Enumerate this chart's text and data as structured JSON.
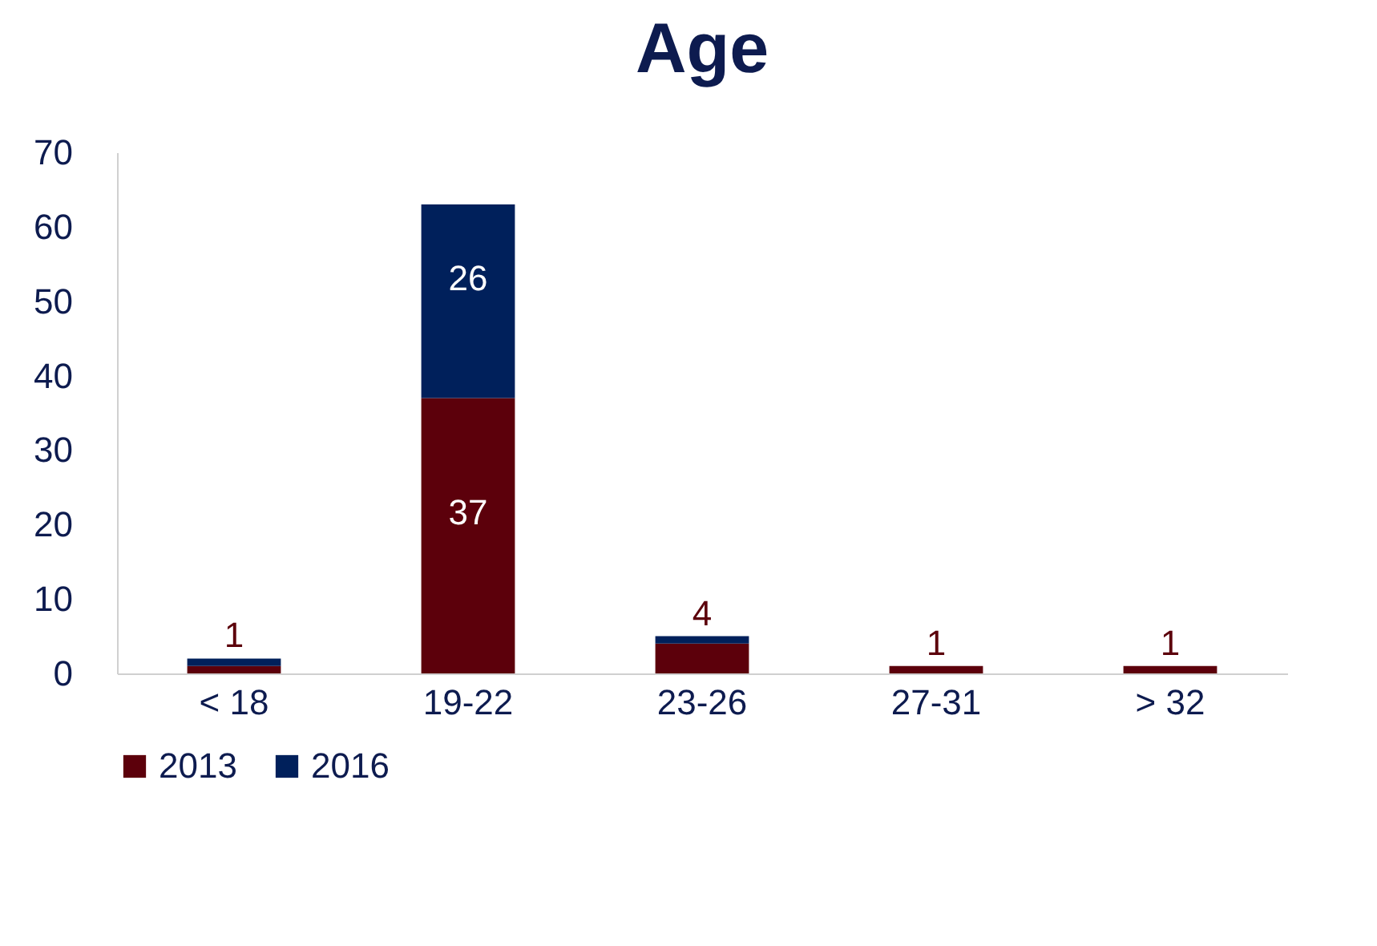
{
  "chart_data": {
    "type": "bar",
    "title": "Age",
    "stacked": true,
    "categories": [
      "< 18",
      "19-22",
      "23-26",
      "27-31",
      "> 32"
    ],
    "series": [
      {
        "name": "2013",
        "color": "#5c000b",
        "values": [
          1,
          37,
          4,
          1,
          1
        ],
        "value_labels": [
          "1",
          "37",
          "4",
          "1",
          "1"
        ]
      },
      {
        "name": "2016",
        "color": "#00205b",
        "values": [
          1,
          26,
          1,
          0,
          0
        ],
        "value_labels": [
          null,
          "26",
          null,
          null,
          null
        ]
      }
    ],
    "ylim": [
      0,
      70
    ],
    "yticks": [
      0,
      10,
      20,
      30,
      40,
      50,
      60,
      70
    ],
    "grid": false,
    "legend": "bottom"
  }
}
